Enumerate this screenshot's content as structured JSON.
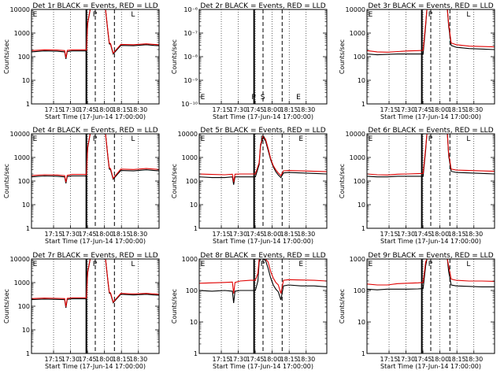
{
  "figure": {
    "xlabel": "Start Time (17-Jun-14 17:00:00)",
    "ylabel": "Counts/sec"
  },
  "colors": {
    "events": "#000000",
    "lld": "#e00000",
    "axes": "#000000",
    "grid": "#000000",
    "background": "#ffffff"
  },
  "chart_data": [
    {
      "type": "line",
      "title": "Det 1r BLACK = Events, RED = LLD",
      "yscale": "log",
      "ylim": [
        1,
        10000
      ],
      "x_ticklabels": [
        "17:15",
        "17:30",
        "17:45",
        "18:00",
        "18:15",
        "18:30"
      ],
      "y_ticklabels": [
        "1",
        "10",
        "100",
        "1000",
        "10000"
      ],
      "markers": [
        "E",
        "P",
        "L"
      ],
      "grid": true,
      "series": [
        {
          "key": "events",
          "x": [
            0,
            10,
            20,
            26,
            27,
            28,
            32,
            40,
            42,
            43,
            44,
            46,
            47.5,
            48,
            54,
            58,
            60,
            61,
            62,
            64,
            70,
            80,
            90,
            96,
            100
          ],
          "values": [
            160,
            175,
            170,
            160,
            80,
            165,
            175,
            175,
            175,
            170,
            2500,
            10000,
            10000,
            10000,
            10000,
            10000,
            1000,
            350,
            330,
            130,
            300,
            290,
            320,
            300,
            290
          ]
        },
        {
          "key": "lld",
          "x": [
            0,
            10,
            20,
            26,
            27,
            28,
            32,
            40,
            42,
            43,
            44,
            46,
            47.5,
            48,
            54,
            58,
            60,
            61,
            62,
            64,
            70,
            80,
            90,
            96,
            100
          ],
          "values": [
            180,
            195,
            190,
            180,
            90,
            185,
            195,
            195,
            195,
            190,
            2700,
            10000,
            10000,
            10000,
            10000,
            10000,
            1100,
            380,
            360,
            140,
            330,
            320,
            350,
            330,
            320
          ]
        }
      ]
    },
    {
      "type": "line",
      "title": "Det 2r BLACK = Events, RED = LLD",
      "yscale": "log",
      "ylim": [
        1e-10,
        1e-06
      ],
      "x_ticklabels": [
        "17:15",
        "17:30",
        "17:45",
        "18:00",
        "18:15",
        "18:30"
      ],
      "y_ticklabels": [
        "10⁻¹⁰",
        "10⁻⁹",
        "10⁻⁸",
        "10⁻⁷",
        "10⁻⁶"
      ],
      "markers": [
        "E",
        "P",
        "S",
        "E"
      ],
      "grid": true,
      "series": []
    },
    {
      "type": "line",
      "title": "Det 3r BLACK = Events, RED = LLD",
      "yscale": "log",
      "ylim": [
        1,
        10000
      ],
      "x_ticklabels": [
        "17:15",
        "17:30",
        "17:45",
        "18:00",
        "18:15",
        "18:30"
      ],
      "y_ticklabels": [
        "1",
        "10",
        "100",
        "1000",
        "10000"
      ],
      "markers": [
        "E",
        "P",
        "L"
      ],
      "grid": true,
      "series": [
        {
          "key": "events",
          "x": [
            0,
            8,
            16,
            24,
            32,
            40,
            44,
            46,
            47,
            48,
            50,
            52,
            53,
            54,
            58,
            63,
            64,
            66,
            70,
            80,
            90,
            100
          ],
          "values": [
            130,
            120,
            125,
            130,
            130,
            130,
            130,
            2000,
            10000,
            10000,
            10000,
            10000,
            10000,
            10000,
            10000,
            10000,
            2000,
            300,
            250,
            220,
            210,
            200
          ]
        },
        {
          "key": "lld",
          "x": [
            0,
            8,
            16,
            24,
            32,
            40,
            44,
            46,
            47,
            48,
            50,
            52,
            53,
            54,
            58,
            63,
            64,
            66,
            70,
            80,
            90,
            100
          ],
          "values": [
            180,
            160,
            155,
            165,
            175,
            180,
            185,
            2500,
            10000,
            10000,
            10000,
            10000,
            10000,
            10000,
            10000,
            10000,
            2500,
            380,
            320,
            280,
            270,
            260
          ]
        }
      ]
    },
    {
      "type": "line",
      "title": "Det 4r BLACK = Events, RED = LLD",
      "yscale": "log",
      "ylim": [
        1,
        10000
      ],
      "x_ticklabels": [
        "17:15",
        "17:30",
        "17:45",
        "18:00",
        "18:15",
        "18:30"
      ],
      "y_ticklabels": [
        "1",
        "10",
        "100",
        "1000",
        "10000"
      ],
      "markers": [
        "E",
        "P",
        "L"
      ],
      "grid": true,
      "series": [
        {
          "key": "events",
          "x": [
            0,
            10,
            20,
            26,
            27,
            28,
            32,
            40,
            42,
            43,
            44,
            46,
            47.5,
            48,
            54,
            58,
            60,
            61,
            62,
            64,
            70,
            80,
            90,
            96,
            100
          ],
          "values": [
            150,
            165,
            160,
            150,
            80,
            155,
            165,
            165,
            165,
            160,
            2500,
            10000,
            10000,
            10000,
            10000,
            10000,
            900,
            320,
            300,
            120,
            280,
            270,
            300,
            280,
            270
          ]
        },
        {
          "key": "lld",
          "x": [
            0,
            10,
            20,
            26,
            27,
            28,
            32,
            40,
            42,
            43,
            44,
            46,
            47.5,
            48,
            54,
            58,
            60,
            61,
            62,
            64,
            70,
            80,
            90,
            96,
            100
          ],
          "values": [
            170,
            185,
            180,
            170,
            90,
            175,
            190,
            190,
            190,
            185,
            2700,
            10000,
            10000,
            10000,
            10000,
            10000,
            1000,
            360,
            340,
            130,
            320,
            310,
            340,
            320,
            310
          ]
        }
      ]
    },
    {
      "type": "line",
      "title": "Det 5r BLACK = Events, RED = LLD",
      "yscale": "log",
      "ylim": [
        1,
        10000
      ],
      "x_ticklabels": [
        "17:15",
        "17:30",
        "17:45",
        "18:00",
        "18:15",
        "18:30"
      ],
      "y_ticklabels": [
        "1",
        "10",
        "100",
        "1000",
        "10000"
      ],
      "markers": [
        "E",
        "P",
        "E"
      ],
      "grid": true,
      "series": [
        {
          "key": "events",
          "x": [
            0,
            10,
            20,
            26,
            27,
            28,
            32,
            40,
            42,
            43,
            44,
            47,
            48,
            50,
            52,
            54,
            56,
            58,
            60,
            62,
            64,
            66,
            70,
            80,
            90,
            100
          ],
          "values": [
            150,
            140,
            140,
            150,
            70,
            150,
            150,
            150,
            150,
            150,
            150,
            500,
            3000,
            7000,
            5000,
            2000,
            800,
            400,
            250,
            180,
            140,
            220,
            230,
            220,
            210,
            200
          ]
        },
        {
          "key": "lld",
          "x": [
            0,
            10,
            20,
            26,
            27,
            28,
            32,
            40,
            42,
            43,
            44,
            47,
            48,
            50,
            52,
            54,
            56,
            58,
            60,
            62,
            64,
            66,
            70,
            80,
            90,
            100
          ],
          "values": [
            200,
            190,
            185,
            195,
            90,
            195,
            200,
            200,
            200,
            200,
            200,
            600,
            3500,
            8000,
            6000,
            2400,
            900,
            450,
            300,
            220,
            170,
            270,
            280,
            270,
            260,
            250
          ]
        }
      ]
    },
    {
      "type": "line",
      "title": "Det 6r BLACK = Events, RED = LLD",
      "yscale": "log",
      "ylim": [
        1,
        10000
      ],
      "x_ticklabels": [
        "17:15",
        "17:30",
        "17:45",
        "18:00",
        "18:15",
        "18:30"
      ],
      "y_ticklabels": [
        "1",
        "10",
        "100",
        "1000",
        "10000"
      ],
      "markers": [
        "E",
        "P",
        "L"
      ],
      "grid": true,
      "series": [
        {
          "key": "events",
          "x": [
            0,
            8,
            16,
            24,
            32,
            40,
            44,
            46,
            47,
            48,
            50,
            52,
            53,
            54,
            58,
            63,
            64,
            66,
            70,
            80,
            90,
            100
          ],
          "values": [
            160,
            150,
            150,
            160,
            160,
            160,
            160,
            2000,
            10000,
            10000,
            10000,
            10000,
            10000,
            10000,
            10000,
            10000,
            1200,
            260,
            230,
            220,
            210,
            200
          ]
        },
        {
          "key": "lld",
          "x": [
            0,
            8,
            16,
            24,
            32,
            40,
            44,
            46,
            47,
            48,
            50,
            52,
            53,
            54,
            58,
            63,
            64,
            66,
            70,
            80,
            90,
            100
          ],
          "values": [
            200,
            185,
            180,
            195,
            200,
            205,
            210,
            2500,
            10000,
            10000,
            10000,
            10000,
            10000,
            10000,
            10000,
            10000,
            1500,
            320,
            290,
            280,
            270,
            260
          ]
        }
      ]
    },
    {
      "type": "line",
      "title": "Det 7r BLACK = Events, RED = LLD",
      "yscale": "log",
      "ylim": [
        1,
        10000
      ],
      "x_ticklabels": [
        "17:15",
        "17:30",
        "17:45",
        "18:00",
        "18:15",
        "18:30"
      ],
      "y_ticklabels": [
        "1",
        "10",
        "100",
        "1000",
        "10000"
      ],
      "markers": [
        "E",
        "P",
        "L"
      ],
      "grid": true,
      "series": [
        {
          "key": "events",
          "x": [
            0,
            10,
            20,
            26,
            27,
            28,
            32,
            40,
            42,
            43,
            44,
            46,
            47.5,
            48,
            54,
            58,
            60,
            61,
            62,
            64,
            70,
            80,
            90,
            96,
            100
          ],
          "values": [
            190,
            200,
            195,
            190,
            85,
            195,
            205,
            205,
            205,
            200,
            2600,
            10000,
            10000,
            10000,
            10000,
            10000,
            1000,
            360,
            340,
            140,
            320,
            300,
            320,
            300,
            290
          ]
        },
        {
          "key": "lld",
          "x": [
            0,
            10,
            20,
            26,
            27,
            28,
            32,
            40,
            42,
            43,
            44,
            46,
            47.5,
            48,
            54,
            58,
            60,
            61,
            62,
            64,
            70,
            80,
            90,
            96,
            100
          ],
          "values": [
            210,
            220,
            215,
            210,
            95,
            215,
            225,
            225,
            225,
            220,
            2800,
            10000,
            10000,
            10000,
            10000,
            10000,
            1100,
            390,
            370,
            150,
            350,
            330,
            350,
            330,
            320
          ]
        }
      ]
    },
    {
      "type": "line",
      "title": "Det 8r BLACK = Events, RED = LLD",
      "yscale": "log",
      "ylim": [
        1,
        1000
      ],
      "x_ticklabels": [
        "17:15",
        "17:30",
        "17:45",
        "18:00",
        "18:15",
        "18:30"
      ],
      "y_ticklabels": [
        "1",
        "10",
        "100",
        "1000"
      ],
      "markers": [
        "E",
        "P",
        "E"
      ],
      "grid": true,
      "series": [
        {
          "key": "events",
          "x": [
            0,
            10,
            20,
            26,
            27,
            28,
            32,
            40,
            42,
            43,
            44,
            46,
            47,
            48,
            50,
            52,
            54,
            56,
            58,
            60,
            62,
            64,
            66,
            70,
            80,
            90,
            100
          ],
          "values": [
            100,
            95,
            100,
            95,
            40,
            95,
            100,
            100,
            100,
            100,
            100,
            200,
            800,
            1000,
            1000,
            900,
            500,
            250,
            150,
            110,
            90,
            50,
            140,
            150,
            140,
            140,
            130
          ]
        },
        {
          "key": "lld",
          "x": [
            0,
            10,
            20,
            26,
            27,
            28,
            32,
            40,
            42,
            43,
            44,
            46,
            47,
            48,
            50,
            52,
            54,
            56,
            58,
            60,
            62,
            64,
            66,
            70,
            80,
            90,
            100
          ],
          "values": [
            170,
            175,
            180,
            185,
            80,
            180,
            200,
            210,
            210,
            210,
            210,
            350,
            1000,
            1000,
            1000,
            1000,
            800,
            400,
            250,
            180,
            150,
            80,
            210,
            220,
            215,
            210,
            200
          ]
        }
      ]
    },
    {
      "type": "line",
      "title": "Det 9r BLACK = Events, RED = LLD",
      "yscale": "log",
      "ylim": [
        1,
        1000
      ],
      "x_ticklabels": [
        "17:15",
        "17:30",
        "17:45",
        "18:00",
        "18:15",
        "18:30"
      ],
      "y_ticklabels": [
        "1",
        "10",
        "100",
        "1000"
      ],
      "markers": [
        "E",
        "P",
        "L"
      ],
      "grid": true,
      "series": [
        {
          "key": "events",
          "x": [
            0,
            8,
            16,
            24,
            32,
            40,
            44,
            46,
            47,
            48,
            50,
            52,
            53,
            54,
            58,
            63,
            64,
            66,
            70,
            80,
            90,
            100
          ],
          "values": [
            110,
            105,
            110,
            110,
            110,
            112,
            115,
            600,
            1000,
            1000,
            1000,
            1000,
            1000,
            1000,
            1000,
            1000,
            400,
            150,
            140,
            135,
            130,
            130
          ]
        },
        {
          "key": "lld",
          "x": [
            0,
            8,
            16,
            24,
            32,
            40,
            44,
            46,
            47,
            48,
            50,
            52,
            53,
            54,
            58,
            63,
            64,
            66,
            70,
            80,
            90,
            100
          ],
          "values": [
            160,
            150,
            150,
            165,
            170,
            175,
            180,
            800,
            1000,
            1000,
            1000,
            1000,
            1000,
            1000,
            1000,
            1000,
            600,
            230,
            210,
            200,
            200,
            195
          ]
        }
      ]
    }
  ]
}
